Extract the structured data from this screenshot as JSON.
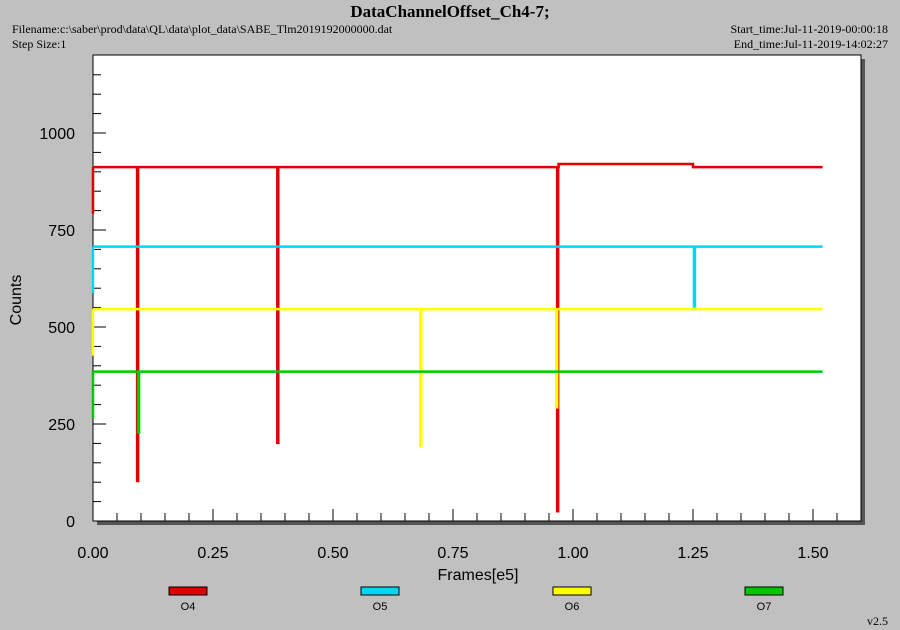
{
  "header": {
    "title": "DataChannelOffset_Ch4-7;",
    "filename": "Filename:c:\\saber\\prod\\data\\QL\\data\\plot_data\\SABE_Tlm2019192000000.dat",
    "step_size": "Step Size:1",
    "start_time": "Start_time:Jul-11-2019-00:00:18",
    "end_time": "End_time:Jul-11-2019-14:02:27"
  },
  "footer": {
    "version": "v2.5"
  },
  "chart_data": {
    "type": "line",
    "title": "DataChannelOffset_Ch4-7;",
    "xlabel": "Frames[e5]",
    "ylabel": "Counts",
    "xlim": [
      0,
      1.6
    ],
    "ylim": [
      0,
      1000
    ],
    "x_ticks": [
      "0.00",
      "0.25",
      "0.50",
      "0.75",
      "1.00",
      "1.25",
      "1.50"
    ],
    "y_ticks": [
      "0",
      "250",
      "500",
      "750",
      "1000"
    ],
    "grid": false,
    "legend_position": "bottom",
    "series": [
      {
        "name": "O4",
        "color": "#e00000",
        "level": [
          [
            0,
            912
          ],
          [
            0.97,
            912
          ],
          [
            0.97,
            920
          ],
          [
            1.25,
            920
          ],
          [
            1.25,
            912
          ],
          [
            1.52,
            912
          ]
        ],
        "dips": [
          [
            0.093,
            100
          ],
          [
            0.385,
            198
          ],
          [
            0.968,
            22
          ]
        ]
      },
      {
        "name": "O5",
        "color": "#00d8f0",
        "level": [
          [
            0,
            707
          ],
          [
            1.52,
            707
          ]
        ],
        "dips": [
          [
            1.253,
            550
          ]
        ]
      },
      {
        "name": "O6",
        "color": "#ffff00",
        "level": [
          [
            0,
            546
          ],
          [
            1.52,
            546
          ]
        ],
        "dips": [
          [
            0.683,
            190
          ],
          [
            0.966,
            290
          ]
        ]
      },
      {
        "name": "O7",
        "color": "#00c800",
        "level": [
          [
            0,
            385
          ],
          [
            1.52,
            385
          ]
        ],
        "dips": [
          [
            0.095,
            225
          ]
        ]
      }
    ]
  }
}
